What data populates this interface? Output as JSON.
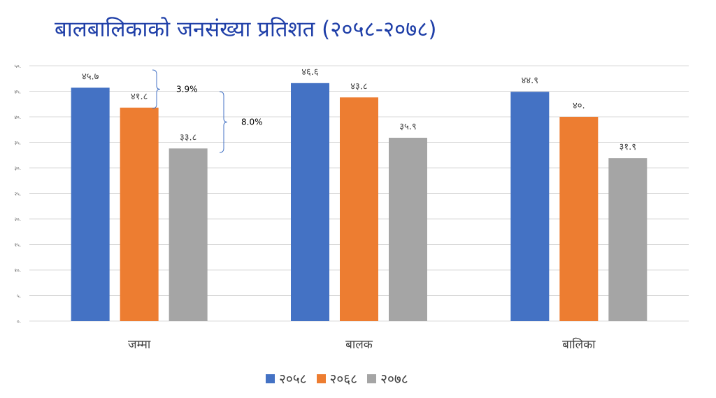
{
  "title": "बालबालिकाको जनसंख्या प्रतिशत (२०५८-२०७८)",
  "chart_data": {
    "type": "bar",
    "categories": [
      "जम्मा",
      "बालक",
      "बालिका"
    ],
    "series": [
      {
        "name": "२०५८",
        "color": "#4472c4",
        "values": [
          45.7,
          46.6,
          44.9
        ],
        "labels": [
          "४५.७",
          "४६.६",
          "४४.९"
        ]
      },
      {
        "name": "२०६८",
        "color": "#ed7d31",
        "values": [
          41.8,
          43.8,
          40.0
        ],
        "labels": [
          "४१.८",
          "४३.८",
          "४०."
        ]
      },
      {
        "name": "२०७८",
        "color": "#a5a5a5",
        "values": [
          33.8,
          35.9,
          31.9
        ],
        "labels": [
          "३३.८",
          "३५.९",
          "३१.९"
        ]
      }
    ],
    "ylim": [
      0,
      50
    ],
    "yticks": [
      "०.",
      "५.",
      "१०.",
      "१५.",
      "२०.",
      "२५.",
      "३०.",
      "३५.",
      "४०.",
      "४५.",
      "५०."
    ],
    "grid": true,
    "legend": "bottom",
    "annotations": [
      "3.9%",
      "8.0%"
    ]
  }
}
